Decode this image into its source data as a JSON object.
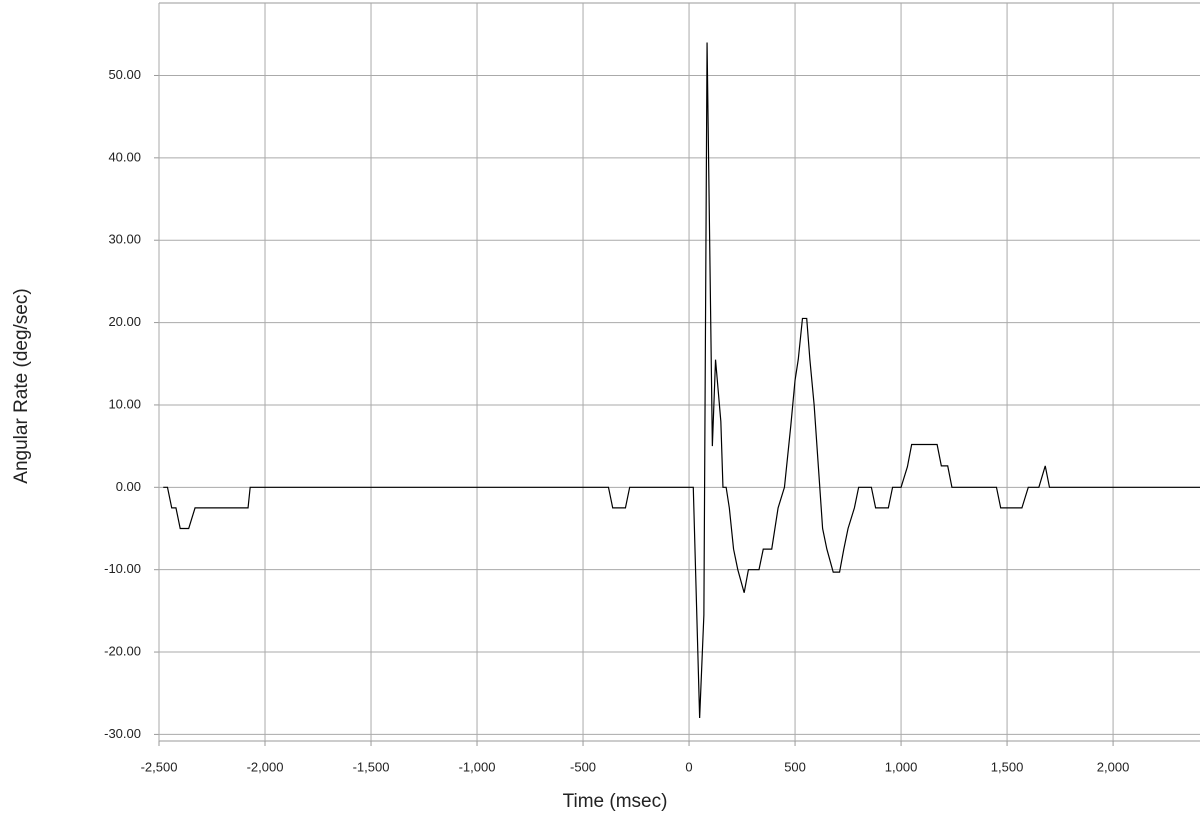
{
  "chart_data": {
    "type": "line",
    "x_label": "Time (msec)",
    "y_label": "Angular Rate (deg/sec)",
    "xlim": [
      -2500,
      2410
    ],
    "ylim": [
      -30.8,
      58.8
    ],
    "xticks": [
      {
        "value": -2500,
        "label": "-2,500"
      },
      {
        "value": -2000,
        "label": "-2,000"
      },
      {
        "value": -1500,
        "label": "-1,500"
      },
      {
        "value": -1000,
        "label": "-1,000"
      },
      -500,
      0,
      500,
      {
        "value": 1000,
        "label": "1,000"
      },
      {
        "value": 1500,
        "label": "1,500"
      },
      {
        "value": 2000,
        "label": "2,000"
      }
    ],
    "yticks": [
      {
        "value": -30,
        "label": "-30.00"
      },
      {
        "value": -20,
        "label": "-20.00"
      },
      {
        "value": -10,
        "label": "-10.00"
      },
      {
        "value": 0,
        "label": "0.00"
      },
      {
        "value": 10,
        "label": "10.00"
      },
      {
        "value": 20,
        "label": "20.00"
      },
      {
        "value": 30,
        "label": "30.00"
      },
      {
        "value": 40,
        "label": "40.00"
      },
      {
        "value": 50,
        "label": "50.00"
      }
    ],
    "grid": true,
    "series": [
      {
        "color": "#000000",
        "x": [
          -2480,
          -2460,
          -2440,
          -2420,
          -2400,
          -2360,
          -2330,
          -2080,
          -2070,
          -380,
          -360,
          -300,
          -280,
          20,
          50,
          70,
          85,
          110,
          125,
          150,
          160,
          175,
          190,
          210,
          230,
          260,
          280,
          330,
          350,
          390,
          420,
          450,
          480,
          500,
          515,
          535,
          555,
          570,
          590,
          610,
          630,
          650,
          680,
          710,
          730,
          750,
          780,
          800,
          860,
          880,
          940,
          960,
          1000,
          1030,
          1050,
          1170,
          1190,
          1220,
          1240,
          1450,
          1470,
          1570,
          1600,
          1650,
          1680,
          1700,
          2410
        ],
        "values": [
          0,
          0,
          -2.5,
          -2.5,
          -5,
          -5,
          -2.5,
          -2.5,
          0,
          0,
          -2.5,
          -2.5,
          0,
          0,
          -28,
          -15.5,
          54,
          5,
          15.5,
          8,
          0,
          0,
          -2.5,
          -7.5,
          -10,
          -12.8,
          -10,
          -10,
          -7.5,
          -7.5,
          -2.5,
          0,
          7.5,
          13,
          15.5,
          20.5,
          20.5,
          15.5,
          10,
          2.5,
          -5,
          -7.5,
          -10.3,
          -10.3,
          -7.5,
          -5,
          -2.5,
          0,
          0,
          -2.5,
          -2.5,
          0,
          0,
          2.5,
          5.2,
          5.2,
          2.6,
          2.6,
          0,
          0,
          -2.5,
          -2.5,
          0,
          0,
          2.6,
          0,
          0
        ]
      }
    ]
  }
}
